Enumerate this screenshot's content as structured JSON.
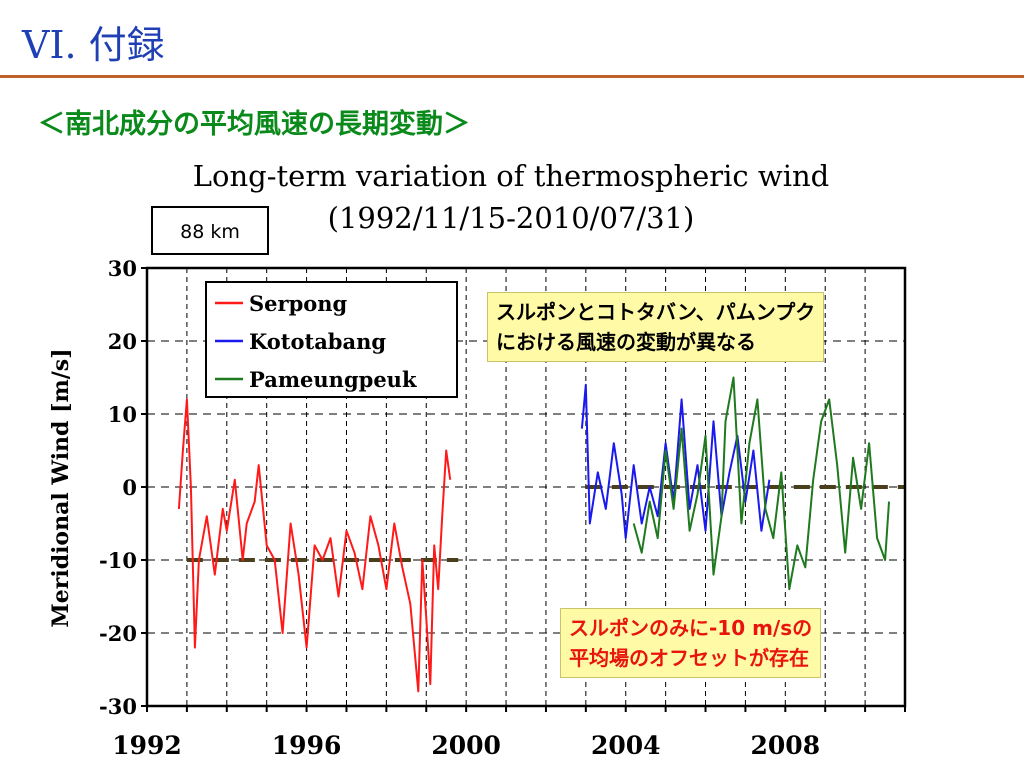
{
  "slide": {
    "title": "VI. 付録",
    "subtitle": "＜南北成分の平均風速の長期変動＞"
  },
  "annotations": {
    "top": [
      "スルポンとコトタバン、パムンプク",
      "における風速の変動が異なる"
    ],
    "bottom": [
      "スルポンのみに-10 m/sの",
      "平均場のオフセットが存在"
    ]
  },
  "colors": {
    "title": "#1f3fb4",
    "subtitle": "#0a8a1a",
    "rule": "#c0602a",
    "serpong": "#ff1a1a",
    "kototabang": "#1a1aee",
    "pameungpeuk": "#1f7a1f",
    "mean_line": "#4a3f1a",
    "note_bg": "#fffaa6",
    "note_red": "#e8140e"
  },
  "chart_data": {
    "type": "line",
    "title": "Long-term variation of thermospheric wind",
    "subtitle": "(1992/11/15-2010/07/31)",
    "altitude_label": "88 km",
    "xlabel": "",
    "ylabel": "Meridional Wind [m/s]",
    "xlim": [
      1992,
      2011
    ],
    "ylim": [
      -30,
      30
    ],
    "x_ticks": [
      1992,
      1996,
      2000,
      2004,
      2008
    ],
    "x_tick_labels": [
      "1992",
      "1996",
      "2000",
      "2004",
      "2008"
    ],
    "y_ticks": [
      30,
      20,
      10,
      0,
      -10,
      -20,
      -30
    ],
    "y_tick_labels": [
      "30",
      "20",
      "10",
      "0",
      "-10",
      "-20",
      "-30"
    ],
    "grid": "dashed vertical yearly, dashed horizontal every 10",
    "legend_position": "top-left",
    "series": [
      {
        "name": "Serpong",
        "x": [
          1992.8,
          1992.9,
          1993.0,
          1993.1,
          1993.2,
          1993.3,
          1993.5,
          1993.7,
          1993.9,
          1994.0,
          1994.2,
          1994.4,
          1994.5,
          1994.7,
          1994.8,
          1995.0,
          1995.2,
          1995.4,
          1995.6,
          1995.8,
          1996.0,
          1996.2,
          1996.4,
          1996.6,
          1996.8,
          1997.0,
          1997.2,
          1997.4,
          1997.6,
          1997.8,
          1998.0,
          1998.2,
          1998.4,
          1998.6,
          1998.8,
          1998.9,
          1999.0,
          1999.1,
          1999.2,
          1999.3,
          1999.4,
          1999.5,
          1999.6
        ],
        "values": [
          -3,
          5,
          12,
          0,
          -22,
          -10,
          -4,
          -12,
          -3,
          -6,
          1,
          -10,
          -5,
          -2,
          3,
          -8,
          -10,
          -20,
          -5,
          -12,
          -22,
          -8,
          -10,
          -7,
          -15,
          -6,
          -9,
          -14,
          -4,
          -8,
          -14,
          -5,
          -11,
          -16,
          -28,
          -10,
          -18,
          -27,
          -8,
          -14,
          -4,
          5,
          1
        ]
      },
      {
        "name": "Kototabang",
        "x": [
          2002.9,
          2003.0,
          2003.1,
          2003.3,
          2003.5,
          2003.7,
          2003.9,
          2004.0,
          2004.2,
          2004.4,
          2004.6,
          2004.8,
          2005.0,
          2005.2,
          2005.4,
          2005.6,
          2005.8,
          2006.0,
          2006.2,
          2006.4,
          2006.6,
          2006.8,
          2007.0,
          2007.2,
          2007.4,
          2007.6
        ],
        "values": [
          8,
          14,
          -5,
          2,
          -3,
          6,
          -1,
          -7,
          3,
          -5,
          0,
          -4,
          6,
          -2,
          12,
          -3,
          3,
          -6,
          9,
          -4,
          2,
          7,
          -2,
          5,
          -6,
          1
        ]
      },
      {
        "name": "Pameungpeuk",
        "x": [
          2004.2,
          2004.4,
          2004.6,
          2004.8,
          2005.0,
          2005.2,
          2005.4,
          2005.6,
          2005.8,
          2006.0,
          2006.2,
          2006.4,
          2006.5,
          2006.7,
          2006.9,
          2007.1,
          2007.3,
          2007.5,
          2007.7,
          2007.9,
          2008.1,
          2008.3,
          2008.5,
          2008.7,
          2008.9,
          2009.1,
          2009.3,
          2009.5,
          2009.7,
          2009.9,
          2010.1,
          2010.3,
          2010.5,
          2010.6
        ],
        "values": [
          -5,
          -9,
          -2,
          -7,
          5,
          -3,
          8,
          -6,
          -1,
          7,
          -12,
          -4,
          9,
          15,
          -5,
          6,
          12,
          -3,
          -7,
          2,
          -14,
          -8,
          -11,
          1,
          9,
          12,
          3,
          -9,
          4,
          -3,
          6,
          -7,
          -10,
          -2
        ]
      }
    ],
    "mean_lines": [
      {
        "name": "Serpong mean",
        "x": [
          1993.0,
          1999.8
        ],
        "value": -10
      },
      {
        "name": "Kototabang/Pameungpeuk mean",
        "x": [
          2003.0,
          2011.0
        ],
        "value": 0
      }
    ]
  }
}
